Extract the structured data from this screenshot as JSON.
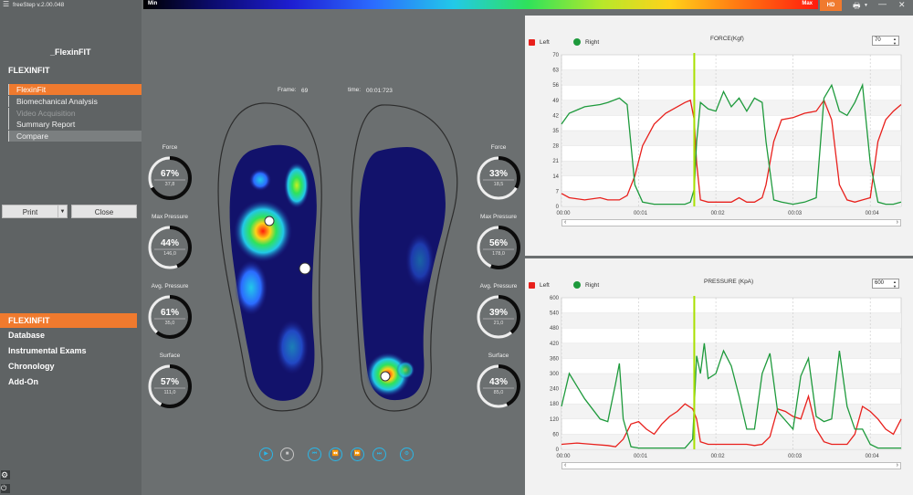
{
  "app": {
    "title": "freeStep v.2.00.048"
  },
  "sidebar": {
    "brand": "_FlexinFIT",
    "section": "FLEXINFIT",
    "menu": [
      "FlexinFit",
      "Biomechanical Analysis",
      "Video Acquisition",
      "Summary Report",
      "Compare"
    ],
    "print_label": "Print",
    "close_label": "Close",
    "nav": [
      "FLEXINFIT",
      "Database",
      "Instrumental Exams",
      "Chronology",
      "Add-On"
    ]
  },
  "scale": {
    "min": "Min",
    "max": "Max",
    "hd": "HD"
  },
  "frame": {
    "label": "Frame:",
    "value": "69",
    "time_label": "time:",
    "time_value": "00:01:723"
  },
  "left_gauges": [
    {
      "label": "Force",
      "value": "67%",
      "sub": "37,8",
      "fraction": 0.67
    },
    {
      "label": "Max Pressure",
      "value": "44%",
      "sub": "146,0",
      "fraction": 0.44
    },
    {
      "label": "Avg. Pressure",
      "value": "61%",
      "sub": "35,0",
      "fraction": 0.61
    },
    {
      "label": "Surface",
      "value": "57%",
      "sub": "111,0",
      "fraction": 0.57
    }
  ],
  "right_gauges": [
    {
      "label": "Force",
      "value": "33%",
      "sub": "18,5",
      "fraction": 0.33
    },
    {
      "label": "Max Pressure",
      "value": "56%",
      "sub": "178,0",
      "fraction": 0.56
    },
    {
      "label": "Avg. Pressure",
      "value": "39%",
      "sub": "21,0",
      "fraction": 0.39
    },
    {
      "label": "Surface",
      "value": "43%",
      "sub": "85,0",
      "fraction": 0.43
    }
  ],
  "colors": {
    "accent": "#f07a2e",
    "left": "#e8201c",
    "right": "#1e9a3c",
    "cursor": "#a8e000",
    "control": "#2ab7e8"
  },
  "chart_data": [
    {
      "type": "line",
      "title": "FORCE(Kgf)",
      "spin_value": "70",
      "legend": [
        "Left",
        "Right"
      ],
      "ylim": [
        0,
        70
      ],
      "yticks": [
        "0",
        "7",
        "14",
        "21",
        "28",
        "35",
        "42",
        "49",
        "56",
        "63",
        "70"
      ],
      "xticks": [
        "00:00",
        "00:01",
        "00:02",
        "00:03",
        "00:04"
      ],
      "xlim": [
        0,
        4.4
      ],
      "cursor_x": 1.72,
      "series": [
        {
          "name": "Left",
          "x": [
            0,
            0.1,
            0.3,
            0.5,
            0.6,
            0.75,
            0.85,
            0.95,
            1.05,
            1.2,
            1.35,
            1.5,
            1.6,
            1.67,
            1.72,
            1.75,
            1.8,
            1.9,
            2.0,
            2.1,
            2.2,
            2.3,
            2.4,
            2.5,
            2.6,
            2.65,
            2.75,
            2.85,
            3.0,
            3.15,
            3.3,
            3.4,
            3.5,
            3.6,
            3.7,
            3.8,
            3.9,
            4.0,
            4.1,
            4.2,
            4.3,
            4.4
          ],
          "y": [
            6,
            4,
            3,
            4,
            3,
            3,
            5,
            14,
            28,
            38,
            43,
            46,
            48,
            49,
            40,
            20,
            3,
            2,
            2,
            2,
            2,
            4,
            2,
            2,
            4,
            10,
            30,
            40,
            41,
            43,
            44,
            49,
            40,
            10,
            3,
            2,
            3,
            4,
            30,
            40,
            44,
            47
          ]
        },
        {
          "name": "Right",
          "x": [
            0,
            0.1,
            0.3,
            0.5,
            0.6,
            0.75,
            0.85,
            0.95,
            1.05,
            1.2,
            1.35,
            1.5,
            1.6,
            1.67,
            1.72,
            1.75,
            1.8,
            1.9,
            2.0,
            2.1,
            2.2,
            2.3,
            2.4,
            2.5,
            2.6,
            2.65,
            2.75,
            2.85,
            3.0,
            3.15,
            3.3,
            3.4,
            3.5,
            3.6,
            3.7,
            3.8,
            3.9,
            4.0,
            4.1,
            4.2,
            4.3,
            4.4
          ],
          "y": [
            38,
            43,
            46,
            47,
            48,
            50,
            47,
            10,
            2,
            1,
            1,
            1,
            1,
            2,
            8,
            30,
            48,
            45,
            44,
            53,
            46,
            50,
            44,
            50,
            48,
            30,
            3,
            2,
            1,
            2,
            4,
            50,
            56,
            44,
            42,
            48,
            56,
            20,
            2,
            1,
            1,
            2
          ]
        }
      ]
    },
    {
      "type": "line",
      "title": "PRESSURE (KpA)",
      "spin_value": "600",
      "legend": [
        "Left",
        "Right"
      ],
      "ylim": [
        0,
        600
      ],
      "yticks": [
        "0",
        "60",
        "120",
        "180",
        "240",
        "300",
        "360",
        "420",
        "480",
        "540",
        "600"
      ],
      "xticks": [
        "00:00",
        "00:01",
        "00:02",
        "00:03",
        "00:04"
      ],
      "xlim": [
        0,
        4.4
      ],
      "cursor_x": 1.72,
      "series": [
        {
          "name": "Left",
          "x": [
            0,
            0.2,
            0.4,
            0.6,
            0.7,
            0.8,
            0.9,
            1.0,
            1.1,
            1.2,
            1.3,
            1.4,
            1.5,
            1.6,
            1.7,
            1.75,
            1.8,
            1.9,
            2.0,
            2.2,
            2.4,
            2.5,
            2.6,
            2.7,
            2.8,
            2.9,
            3.0,
            3.1,
            3.2,
            3.3,
            3.4,
            3.5,
            3.6,
            3.7,
            3.8,
            3.9,
            4.0,
            4.1,
            4.2,
            4.3,
            4.4
          ],
          "y": [
            20,
            25,
            20,
            15,
            10,
            40,
            100,
            110,
            80,
            60,
            100,
            130,
            150,
            180,
            160,
            120,
            30,
            20,
            20,
            20,
            20,
            15,
            20,
            50,
            160,
            150,
            130,
            120,
            210,
            80,
            30,
            20,
            20,
            20,
            60,
            170,
            150,
            120,
            80,
            60,
            120
          ]
        },
        {
          "name": "Right",
          "x": [
            0,
            0.1,
            0.2,
            0.3,
            0.4,
            0.5,
            0.6,
            0.7,
            0.75,
            0.8,
            0.9,
            1.0,
            1.2,
            1.4,
            1.6,
            1.7,
            1.75,
            1.8,
            1.85,
            1.9,
            2.0,
            2.1,
            2.2,
            2.3,
            2.4,
            2.5,
            2.6,
            2.7,
            2.8,
            3.0,
            3.1,
            3.2,
            3.3,
            3.4,
            3.5,
            3.6,
            3.7,
            3.8,
            3.9,
            4.0,
            4.1,
            4.2,
            4.4
          ],
          "y": [
            170,
            300,
            250,
            200,
            160,
            120,
            110,
            260,
            340,
            120,
            10,
            5,
            5,
            5,
            5,
            40,
            370,
            300,
            420,
            280,
            300,
            390,
            330,
            210,
            80,
            80,
            300,
            380,
            150,
            80,
            290,
            360,
            130,
            110,
            120,
            390,
            170,
            80,
            80,
            20,
            5,
            5,
            5
          ]
        }
      ]
    }
  ]
}
